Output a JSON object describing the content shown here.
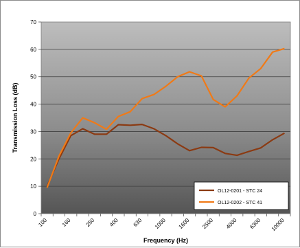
{
  "chart_data": {
    "type": "line",
    "title": "",
    "xlabel": "Frequency (Hz)",
    "ylabel": "Transmission Loss (dB)",
    "ylim": [
      0,
      70
    ],
    "yticks": [
      0,
      10,
      20,
      30,
      40,
      50,
      60,
      70
    ],
    "categories": [
      "100",
      "125",
      "160",
      "200",
      "250",
      "315",
      "400",
      "500",
      "630",
      "800",
      "1000",
      "1250",
      "1600",
      "2000",
      "2500",
      "3150",
      "4000",
      "5000",
      "6300",
      "8000",
      "10000"
    ],
    "x_tick_labels": [
      "100",
      "160",
      "250",
      "400",
      "630",
      "1000",
      "1600",
      "2500",
      "4000",
      "6300",
      "10000"
    ],
    "grid": "horizontal",
    "legend_position": "bottom-right",
    "background": "gradient-gray",
    "series": [
      {
        "name": "OL12-0201 - STC 24",
        "color": "#8b3a12",
        "values": [
          10,
          20,
          28.5,
          31,
          29,
          29,
          32.5,
          32.3,
          32.6,
          31,
          28.5,
          25.5,
          23,
          24.2,
          24.1,
          22,
          21.3,
          22.7,
          24,
          27,
          29.4
        ]
      },
      {
        "name": "OL12-0202 - STC 41",
        "color": "#f07a17",
        "values": [
          9.5,
          21,
          29.5,
          35,
          33.2,
          30.8,
          35.5,
          37.2,
          42,
          43.5,
          46.5,
          50,
          51.8,
          50.3,
          41.7,
          39,
          43,
          49.5,
          53,
          59,
          60.3
        ]
      }
    ]
  }
}
